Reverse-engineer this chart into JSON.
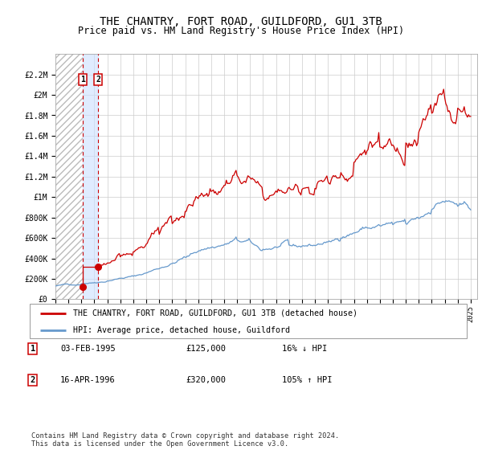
{
  "title": "THE CHANTRY, FORT ROAD, GUILDFORD, GU1 3TB",
  "subtitle": "Price paid vs. HM Land Registry's House Price Index (HPI)",
  "title_fontsize": 10,
  "subtitle_fontsize": 8.5,
  "ylim": [
    0,
    2400000
  ],
  "yticks": [
    0,
    200000,
    400000,
    600000,
    800000,
    1000000,
    1200000,
    1400000,
    1600000,
    1800000,
    2000000,
    2200000
  ],
  "ytick_labels": [
    "£0",
    "£200K",
    "£400K",
    "£600K",
    "£800K",
    "£1M",
    "£1.2M",
    "£1.4M",
    "£1.6M",
    "£1.8M",
    "£2M",
    "£2.2M"
  ],
  "x_min": 1993.0,
  "x_max": 2025.5,
  "purchase1_x": 1995.09,
  "purchase1_y": 125000,
  "purchase2_x": 1996.29,
  "purchase2_y": 320000,
  "purchase1_label": "1",
  "purchase2_label": "2",
  "hpi_color": "#6699cc",
  "price_color": "#cc0000",
  "background_color": "#ffffff",
  "grid_color": "#cccccc",
  "legend_label_price": "THE CHANTRY, FORT ROAD, GUILDFORD, GU1 3TB (detached house)",
  "legend_label_hpi": "HPI: Average price, detached house, Guildford",
  "table_row1": [
    "1",
    "03-FEB-1995",
    "£125,000",
    "16% ↓ HPI"
  ],
  "table_row2": [
    "2",
    "16-APR-1996",
    "£320,000",
    "105% ↑ HPI"
  ],
  "footer": "Contains HM Land Registry data © Crown copyright and database right 2024.\nThis data is licensed under the Open Government Licence v3.0."
}
